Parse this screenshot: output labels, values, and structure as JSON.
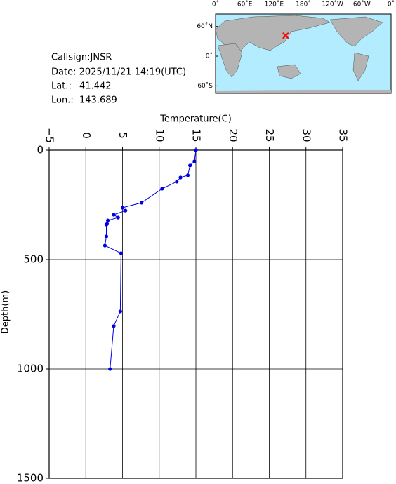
{
  "chart_data": {
    "type": "profile",
    "xlabel": "Temperature(C)",
    "ylabel": "Depth(m)",
    "xlim": [
      -5,
      35
    ],
    "xticks": [
      {
        "value": -5,
        "label": "−5"
      },
      0,
      5,
      10,
      15,
      20,
      25,
      30,
      35
    ],
    "ylim": [
      0,
      1500
    ],
    "yticks": [
      0,
      500,
      1000,
      1500
    ],
    "y_inverted": true,
    "grid": true,
    "color": "#0000e0",
    "x": [
      15.0,
      14.8,
      14.2,
      13.9,
      12.9,
      12.4,
      10.4,
      7.6,
      5.0,
      5.4,
      3.8,
      4.4,
      3.0,
      2.9,
      2.8,
      2.8,
      2.6,
      4.8,
      4.7,
      3.8,
      3.3
    ],
    "values": [
      0,
      51,
      70,
      115,
      125,
      144,
      176,
      240,
      263,
      276,
      295,
      308,
      321,
      337,
      340,
      394,
      436,
      471,
      737,
      804,
      1000
    ],
    "station": {
      "callsign": "Callsign:JNSR",
      "date": "Date:  2025/11/21 14:19(UTC)",
      "lat_label": "Lat.:",
      "lat": 41.442,
      "lon_label": "Lon.:",
      "lon": 143.689
    },
    "map": {
      "lonlim": [
        0,
        360
      ],
      "latlim": [
        85,
        -75
      ],
      "lon_labels": [
        "0˚",
        "60˚E",
        "120˚E",
        "180˚",
        "120˚W",
        "60˚W",
        "0˚"
      ],
      "lat_ticks": [
        {
          "value": 60,
          "label": "60˚N"
        },
        {
          "value": 0,
          "label": "0˚"
        },
        {
          "value": -60,
          "label": "60˚S"
        }
      ],
      "marker_color": "#ff0000"
    }
  }
}
